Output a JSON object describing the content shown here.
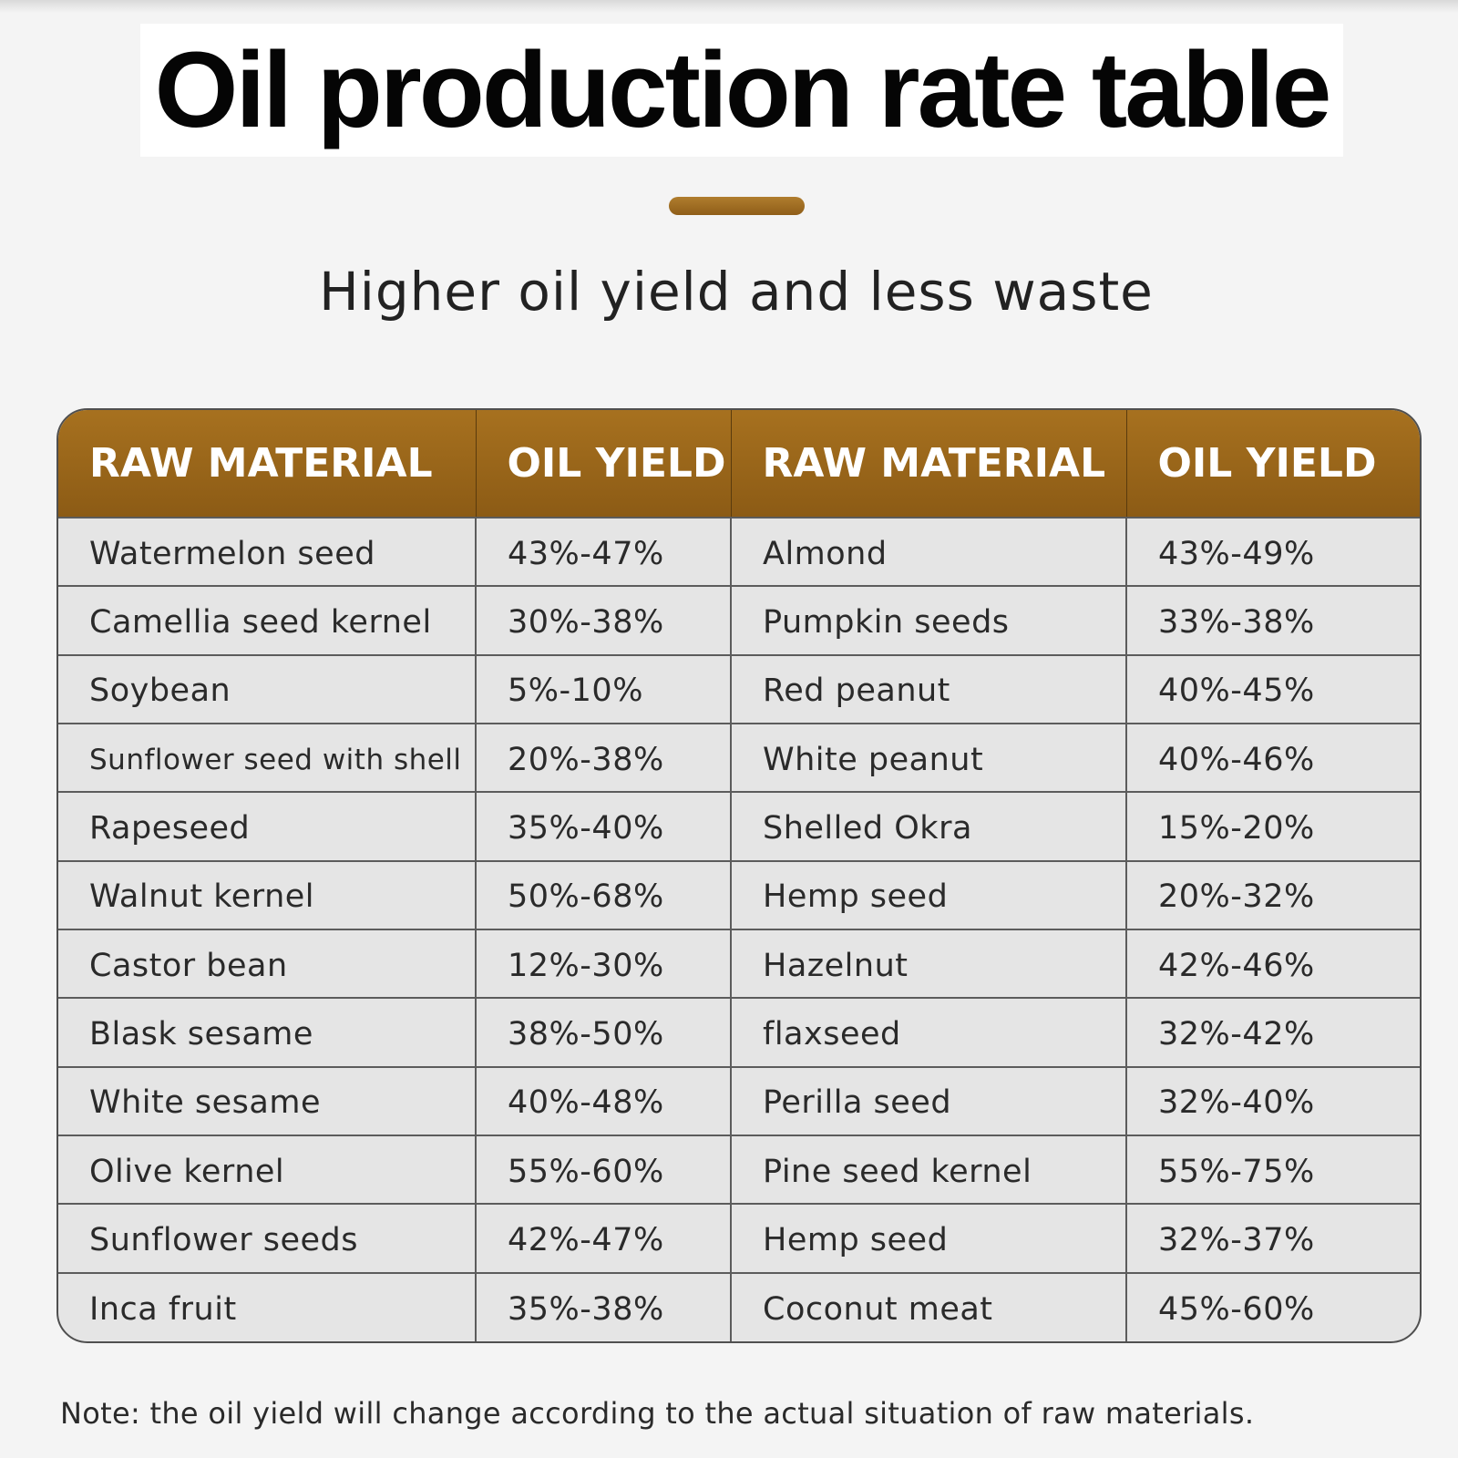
{
  "title": "Oil production rate table",
  "subtitle": "Higher oil yield and less waste",
  "colors": {
    "accent": "#9a6419",
    "background": "#f4f4f4",
    "table_body": "#e5e5e5"
  },
  "table": {
    "headers": [
      "RAW MATERIAL",
      "OIL YIELD",
      "RAW MATERIAL",
      "OIL YIELD"
    ],
    "rows": [
      [
        "Watermelon seed",
        "43%-47%",
        "Almond",
        "43%-49%"
      ],
      [
        "Camellia seed kernel",
        "30%-38%",
        "Pumpkin seeds",
        "33%-38%"
      ],
      [
        "Soybean",
        "5%-10%",
        "Red peanut",
        "40%-45%"
      ],
      [
        "Sunflower seed with shell",
        "20%-38%",
        "White peanut",
        "40%-46%"
      ],
      [
        "Rapeseed",
        "35%-40%",
        "Shelled Okra",
        "15%-20%"
      ],
      [
        "Walnut kernel",
        "50%-68%",
        "Hemp seed",
        "20%-32%"
      ],
      [
        "Castor bean",
        "12%-30%",
        "Hazelnut",
        "42%-46%"
      ],
      [
        "Blask sesame",
        "38%-50%",
        "flaxseed",
        "32%-42%"
      ],
      [
        "White sesame",
        "40%-48%",
        "Perilla seed",
        "32%-40%"
      ],
      [
        "Olive kernel",
        "55%-60%",
        "Pine seed kernel",
        "55%-75%"
      ],
      [
        "Sunflower seeds",
        "42%-47%",
        "Hemp seed",
        "32%-37%"
      ],
      [
        "Inca fruit",
        "35%-38%",
        "Coconut meat",
        "45%-60%"
      ]
    ]
  },
  "note": "Note: the oil yield will change according to the actual situation of raw materials."
}
